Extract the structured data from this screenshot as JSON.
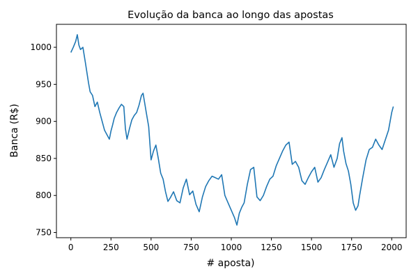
{
  "chart_data": {
    "type": "line",
    "title": "Evolução da banca ao longo das apostas",
    "xlabel": "# aposta)",
    "ylabel": "Banca (R$)",
    "xlim": [
      -90,
      2090
    ],
    "ylim": [
      743,
      1031
    ],
    "xticks": [
      0,
      250,
      500,
      750,
      1000,
      1250,
      1500,
      1750,
      2000
    ],
    "yticks": [
      750,
      800,
      850,
      900,
      950,
      1000
    ],
    "grid": false,
    "series": [
      {
        "color": "#1f77b4",
        "x": [
          0,
          15,
          30,
          40,
          50,
          60,
          75,
          90,
          100,
          110,
          120,
          135,
          150,
          165,
          180,
          195,
          210,
          225,
          240,
          250,
          260,
          270,
          285,
          300,
          315,
          330,
          340,
          350,
          365,
          380,
          395,
          410,
          425,
          440,
          450,
          460,
          470,
          485,
          500,
          515,
          530,
          545,
          560,
          575,
          590,
          605,
          620,
          640,
          660,
          680,
          700,
          720,
          740,
          760,
          780,
          800,
          820,
          840,
          860,
          880,
          900,
          920,
          940,
          960,
          980,
          1000,
          1020,
          1035,
          1050,
          1065,
          1080,
          1100,
          1120,
          1140,
          1160,
          1180,
          1200,
          1220,
          1240,
          1260,
          1280,
          1300,
          1320,
          1340,
          1360,
          1380,
          1400,
          1420,
          1440,
          1460,
          1480,
          1500,
          1520,
          1540,
          1560,
          1580,
          1600,
          1620,
          1640,
          1660,
          1675,
          1690,
          1700,
          1715,
          1730,
          1745,
          1760,
          1775,
          1790,
          1800,
          1820,
          1840,
          1860,
          1880,
          1900,
          1920,
          1940,
          1960,
          1980,
          2000,
          2010
        ],
        "values": [
          993,
          1000,
          1008,
          1017,
          1003,
          997,
          1000,
          980,
          966,
          952,
          940,
          935,
          920,
          926,
          912,
          900,
          888,
          882,
          876,
          887,
          895,
          904,
          912,
          918,
          923,
          920,
          890,
          876,
          890,
          902,
          908,
          912,
          922,
          935,
          938,
          925,
          912,
          893,
          848,
          860,
          868,
          850,
          830,
          822,
          805,
          792,
          797,
          805,
          793,
          790,
          810,
          822,
          801,
          806,
          788,
          778,
          798,
          812,
          820,
          826,
          824,
          822,
          828,
          800,
          790,
          780,
          770,
          760,
          776,
          784,
          790,
          815,
          835,
          838,
          798,
          793,
          800,
          812,
          822,
          826,
          840,
          850,
          860,
          868,
          872,
          842,
          846,
          838,
          820,
          815,
          824,
          832,
          838,
          818,
          824,
          835,
          845,
          855,
          838,
          850,
          870,
          878,
          860,
          843,
          833,
          815,
          790,
          780,
          786,
          800,
          825,
          848,
          862,
          865,
          876,
          868,
          862,
          875,
          888,
          912,
          920
        ]
      }
    ]
  }
}
